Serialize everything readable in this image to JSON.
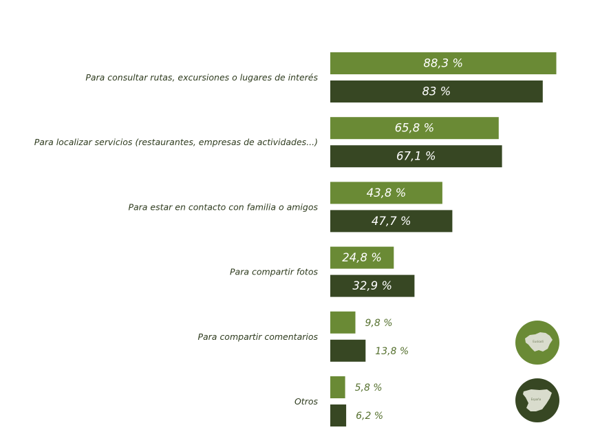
{
  "chart_data": {
    "type": "bar",
    "orientation": "horizontal",
    "categories": [
      "Para consultar rutas, excursiones o lugares de interés",
      "Para localizar servicios (restaurantes, empresas de actividades...)",
      "Para estar en contacto con familia o amigos",
      "Para compartir fotos",
      "Para compartir comentarios",
      "Otros"
    ],
    "series": [
      {
        "values": [
          88.3,
          65.8,
          43.8,
          24.8,
          9.8,
          5.8
        ],
        "labels": [
          "88,3 %",
          "65,8 %",
          "43,8 %",
          "24,8 %",
          "9,8 %",
          "5,8 %"
        ],
        "color": "#6a8a35"
      },
      {
        "values": [
          83,
          67.1,
          47.7,
          32.9,
          13.8,
          6.2
        ],
        "labels": [
          "83 %",
          "67,1 %",
          "47,7 %",
          "32,9 %",
          "13,8 %",
          "6,2 %"
        ],
        "color": "#374723"
      }
    ],
    "xlim": [
      0,
      100
    ],
    "legend": "bottom-right",
    "grid": false
  },
  "legend_badges": [
    {
      "map": "basque-country-map-icon",
      "color": "#6a8a35",
      "text": "Euskadi"
    },
    {
      "map": "spain-map-icon",
      "color": "#374723",
      "text": "España"
    }
  ],
  "colors": {
    "label_text": "#2e3b1e",
    "outside_value_text": "#55702e",
    "map_fill": "#d9dccd"
  }
}
